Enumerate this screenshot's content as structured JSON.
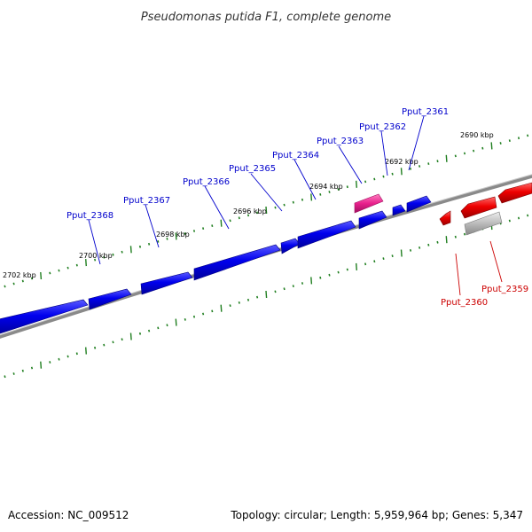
{
  "title": "Pseudomonas putida F1, complete genome",
  "colors": {
    "forward_gene": "#0000ee",
    "reverse_gene": "#ee0000",
    "highlighted_gene": "#e8208c",
    "other_feature": "#b8b8b8",
    "backbone": "#808080",
    "ticks": "#207f20"
  },
  "scale_labels": [
    "2690 kbp",
    "2692 kbp",
    "2694 kbp",
    "2696 kbp",
    "2698 kbp",
    "2700 kbp",
    "2702 kbp"
  ],
  "genes": [
    {
      "name": "Pput_2361",
      "strand": "+"
    },
    {
      "name": "Pput_2362",
      "strand": "+"
    },
    {
      "name": "Pput_2363",
      "strand": "+"
    },
    {
      "name": "Pput_2364",
      "strand": "+"
    },
    {
      "name": "Pput_2365",
      "strand": "+"
    },
    {
      "name": "Pput_2366",
      "strand": "+"
    },
    {
      "name": "Pput_2367",
      "strand": "+"
    },
    {
      "name": "Pput_2368",
      "strand": "+"
    },
    {
      "name": "Pput_2360",
      "strand": "-"
    },
    {
      "name": "Pput_2359",
      "strand": "-"
    }
  ],
  "footer": {
    "accession": "Accession: NC_009512",
    "stats": "Topology: circular; Length: 5,959,964 bp; Genes: 5,347"
  }
}
